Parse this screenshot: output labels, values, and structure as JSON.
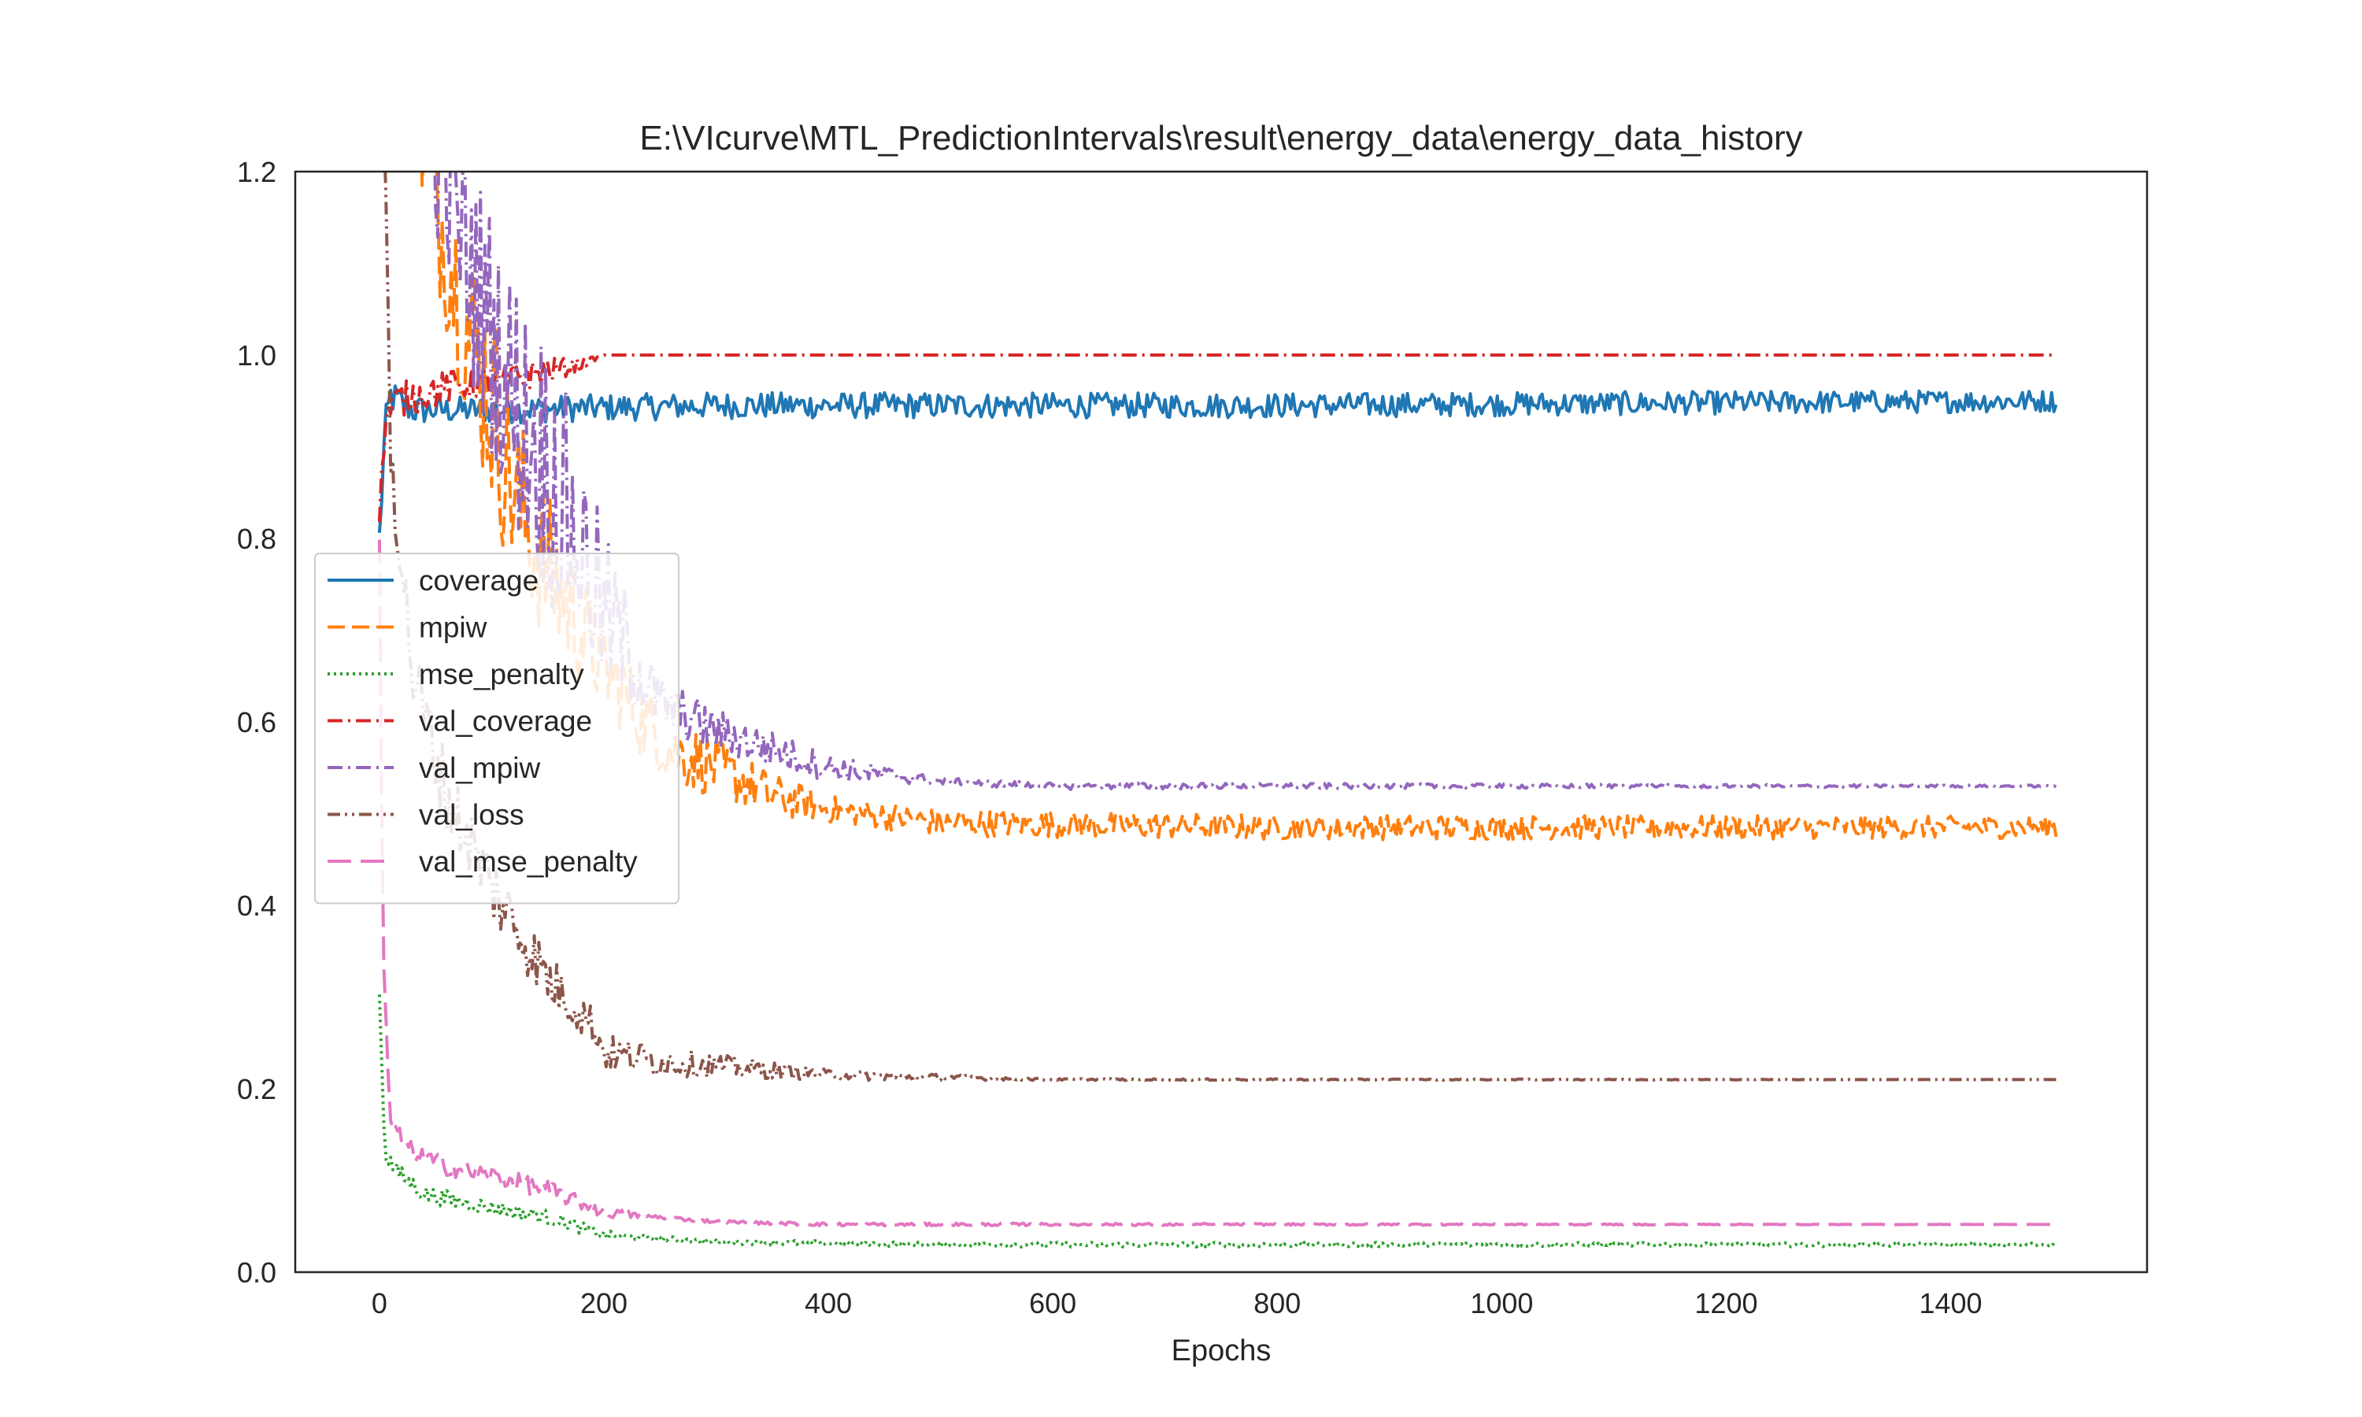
{
  "chart_data": {
    "type": "line",
    "title": "E:\\VIcurve\\MTL_PredictionIntervals\\result\\energy_data\\energy_data_history",
    "xlabel": "Epochs",
    "ylabel": "",
    "xlim": [
      -75,
      1575
    ],
    "ylim": [
      0.0,
      1.2
    ],
    "xticks": [
      0,
      200,
      400,
      600,
      800,
      1000,
      1200,
      1400
    ],
    "yticks": [
      0.0,
      0.2,
      0.4,
      0.6,
      0.8,
      1.0,
      1.2
    ],
    "grid": false,
    "legend_position": "center-left",
    "series": [
      {
        "name": "coverage",
        "color": "#1f77b4",
        "dash": "solid",
        "anchors": [
          [
            0,
            0.8
          ],
          [
            5,
            0.92
          ],
          [
            10,
            0.955
          ],
          [
            30,
            0.94
          ],
          [
            100,
            0.94
          ],
          [
            300,
            0.945
          ],
          [
            800,
            0.945
          ],
          [
            1200,
            0.948
          ],
          [
            1494,
            0.95
          ]
        ],
        "noise": [
          [
            0,
            0.02
          ],
          [
            50,
            0.015
          ],
          [
            1494,
            0.012
          ]
        ]
      },
      {
        "name": "mpiw",
        "color": "#ff7f0e",
        "dash": "dashed",
        "anchors": [
          [
            0,
            1.6
          ],
          [
            20,
            1.4
          ],
          [
            40,
            1.22
          ],
          [
            60,
            1.12
          ],
          [
            80,
            1.02
          ],
          [
            100,
            0.95
          ],
          [
            120,
            0.85
          ],
          [
            140,
            0.79
          ],
          [
            170,
            0.72
          ],
          [
            200,
            0.66
          ],
          [
            230,
            0.61
          ],
          [
            260,
            0.57
          ],
          [
            300,
            0.55
          ],
          [
            350,
            0.52
          ],
          [
            400,
            0.505
          ],
          [
            500,
            0.49
          ],
          [
            800,
            0.485
          ],
          [
            1494,
            0.485
          ]
        ],
        "noise": [
          [
            0,
            0.06
          ],
          [
            100,
            0.12
          ],
          [
            200,
            0.05
          ],
          [
            400,
            0.015
          ],
          [
            1494,
            0.012
          ]
        ]
      },
      {
        "name": "mse_penalty",
        "color": "#2ca02c",
        "dash": "dotted",
        "anchors": [
          [
            0,
            0.3
          ],
          [
            5,
            0.13
          ],
          [
            15,
            0.11
          ],
          [
            40,
            0.085
          ],
          [
            100,
            0.07
          ],
          [
            150,
            0.06
          ],
          [
            200,
            0.04
          ],
          [
            300,
            0.033
          ],
          [
            500,
            0.03
          ],
          [
            1494,
            0.03
          ]
        ],
        "noise": [
          [
            0,
            0.01
          ],
          [
            150,
            0.008
          ],
          [
            250,
            0.003
          ],
          [
            1494,
            0.002
          ]
        ]
      },
      {
        "name": "val_coverage",
        "color": "#d62728",
        "dash": "dashdot",
        "anchors": [
          [
            0,
            0.82
          ],
          [
            5,
            0.93
          ],
          [
            15,
            0.95
          ],
          [
            60,
            0.965
          ],
          [
            120,
            0.975
          ],
          [
            180,
            0.99
          ],
          [
            200,
            1.0
          ],
          [
            1494,
            1.0
          ]
        ],
        "noise": [
          [
            0,
            0.02
          ],
          [
            150,
            0.015
          ],
          [
            200,
            0.0
          ],
          [
            1494,
            0.0
          ]
        ]
      },
      {
        "name": "val_mpiw",
        "color": "#9467bd",
        "dash": "dashdot",
        "anchors": [
          [
            0,
            1.6
          ],
          [
            40,
            1.3
          ],
          [
            80,
            1.1
          ],
          [
            120,
            0.95
          ],
          [
            160,
            0.85
          ],
          [
            200,
            0.72
          ],
          [
            250,
            0.62
          ],
          [
            300,
            0.59
          ],
          [
            350,
            0.57
          ],
          [
            400,
            0.55
          ],
          [
            500,
            0.535
          ],
          [
            600,
            0.53
          ],
          [
            1494,
            0.53
          ]
        ],
        "noise": [
          [
            0,
            0.1
          ],
          [
            150,
            0.15
          ],
          [
            250,
            0.03
          ],
          [
            350,
            0.02
          ],
          [
            500,
            0.004
          ],
          [
            1494,
            0.001
          ]
        ]
      },
      {
        "name": "val_loss",
        "color": "#8c564b",
        "dash": "dashdotdot",
        "anchors": [
          [
            0,
            1.6
          ],
          [
            5,
            1.2
          ],
          [
            10,
            0.9
          ],
          [
            30,
            0.65
          ],
          [
            60,
            0.52
          ],
          [
            100,
            0.42
          ],
          [
            150,
            0.32
          ],
          [
            190,
            0.27
          ],
          [
            200,
            0.24
          ],
          [
            250,
            0.23
          ],
          [
            300,
            0.225
          ],
          [
            400,
            0.215
          ],
          [
            600,
            0.21
          ],
          [
            1494,
            0.21
          ]
        ],
        "noise": [
          [
            0,
            0.05
          ],
          [
            100,
            0.04
          ],
          [
            200,
            0.02
          ],
          [
            400,
            0.006
          ],
          [
            600,
            0.001
          ],
          [
            1494,
            0.0
          ]
        ]
      },
      {
        "name": "val_mse_penalty",
        "color": "#e377c2",
        "dash": "longdash",
        "anchors": [
          [
            0,
            0.8
          ],
          [
            3,
            0.35
          ],
          [
            10,
            0.16
          ],
          [
            30,
            0.13
          ],
          [
            60,
            0.115
          ],
          [
            100,
            0.105
          ],
          [
            150,
            0.09
          ],
          [
            200,
            0.065
          ],
          [
            300,
            0.055
          ],
          [
            400,
            0.052
          ],
          [
            1494,
            0.052
          ]
        ],
        "noise": [
          [
            0,
            0.01
          ],
          [
            150,
            0.01
          ],
          [
            250,
            0.002
          ],
          [
            1494,
            0.0
          ]
        ]
      }
    ]
  }
}
